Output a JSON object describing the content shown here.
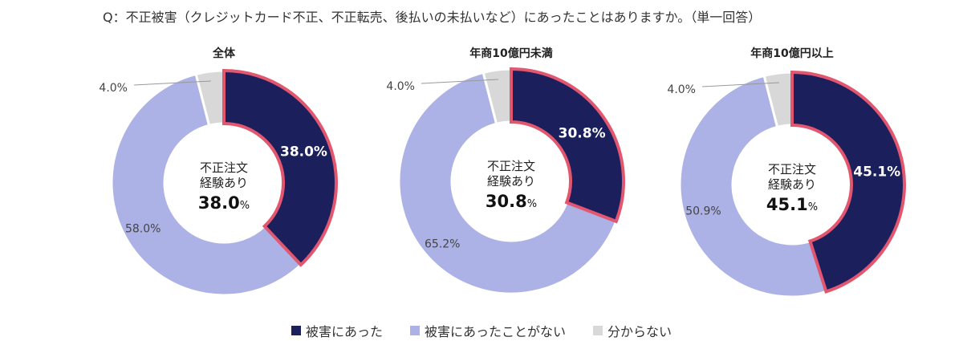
{
  "question": "Q：不正被害（クレジットカード不正、不正転売、後払いの未払いなど）にあったことはありますか。（単一回答）",
  "colors": {
    "damaged": "#1b1f5c",
    "not_damaged": "#adb2e6",
    "unknown": "#d8d8d8",
    "highlight": "#e2566f"
  },
  "chart_data": [
    {
      "type": "pie",
      "title": "全体",
      "center_label": "不正注文\n経験あり",
      "center_label_lines": [
        "不正注文",
        "経験あり"
      ],
      "center_value": "38.0",
      "center_unit": "%",
      "categories": [
        "被害にあった",
        "被害にあったことがない",
        "分からない"
      ],
      "values": [
        38.0,
        58.0,
        4.0
      ],
      "labels": [
        "38.0%",
        "58.0%",
        "4.0%"
      ]
    },
    {
      "type": "pie",
      "title": "年商10億円未満",
      "center_label_lines": [
        "不正注文",
        "経験あり"
      ],
      "center_value": "30.8",
      "center_unit": "%",
      "categories": [
        "被害にあった",
        "被害にあったことがない",
        "分からない"
      ],
      "values": [
        30.8,
        65.2,
        4.0
      ],
      "labels": [
        "30.8%",
        "65.2%",
        "4.0%"
      ]
    },
    {
      "type": "pie",
      "title": "年商10億円以上",
      "center_label_lines": [
        "不正注文",
        "経験あり"
      ],
      "center_value": "45.1",
      "center_unit": "%",
      "categories": [
        "被害にあった",
        "被害にあったことがない",
        "分からない"
      ],
      "values": [
        45.1,
        50.9,
        4.0
      ],
      "labels": [
        "45.1%",
        "50.9%",
        "4.0%"
      ]
    }
  ],
  "legend": [
    "被害にあった",
    "被害にあったことがない",
    "分からない"
  ]
}
